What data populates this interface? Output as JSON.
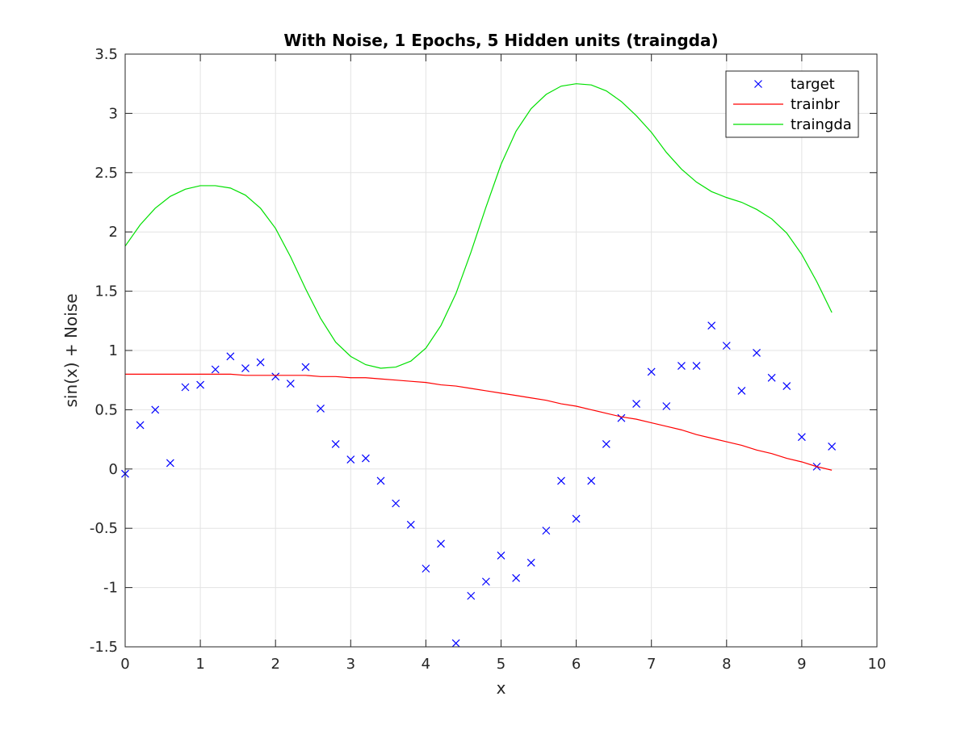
{
  "chart_data": {
    "type": "line",
    "title": "With Noise, 1 Epochs, 5 Hidden units (traingda)",
    "xlabel": "x",
    "ylabel": "sin(x) + Noise",
    "xlim": [
      0,
      10
    ],
    "ylim": [
      -1.5,
      3.5
    ],
    "xticks": [
      0,
      1,
      2,
      3,
      4,
      5,
      6,
      7,
      8,
      9,
      10
    ],
    "yticks": [
      -1.5,
      -1,
      -0.5,
      0,
      0.5,
      1,
      1.5,
      2,
      2.5,
      3,
      3.5
    ],
    "xtick_labels": [
      "0",
      "1",
      "2",
      "3",
      "4",
      "5",
      "6",
      "7",
      "8",
      "9",
      "10"
    ],
    "ytick_labels": [
      "-1.5",
      "-1",
      "-0.5",
      "0",
      "0.5",
      "1",
      "1.5",
      "2",
      "2.5",
      "3",
      "3.5"
    ],
    "grid": true,
    "legend_position": "top-right",
    "x": [
      0,
      0.2,
      0.4,
      0.6,
      0.8,
      1.0,
      1.2,
      1.4,
      1.6,
      1.8,
      2.0,
      2.2,
      2.4,
      2.6,
      2.8,
      3.0,
      3.2,
      3.4,
      3.6,
      3.8,
      4.0,
      4.2,
      4.4,
      4.6,
      4.8,
      5.0,
      5.2,
      5.4,
      5.6,
      5.8,
      6.0,
      6.2,
      6.4,
      6.6,
      6.8,
      7.0,
      7.2,
      7.4,
      7.6,
      7.8,
      8.0,
      8.2,
      8.4,
      8.6,
      8.8,
      9.0,
      9.2,
      9.4
    ],
    "series": [
      {
        "name": "target",
        "style": "marker-x",
        "color": "#0000ff",
        "values": [
          -0.04,
          0.37,
          0.5,
          0.05,
          0.69,
          0.71,
          0.84,
          0.95,
          0.85,
          0.9,
          0.78,
          0.72,
          0.86,
          0.51,
          0.21,
          0.08,
          0.09,
          -0.1,
          -0.29,
          -0.47,
          -0.84,
          -0.63,
          -1.47,
          -1.07,
          -0.95,
          -0.73,
          -0.92,
          -0.79,
          -0.52,
          -0.1,
          -0.42,
          -0.1,
          0.21,
          0.43,
          0.55,
          0.82,
          0.53,
          0.87,
          0.87,
          1.21,
          1.04,
          0.66,
          0.98,
          0.77,
          0.7,
          0.27,
          0.02,
          0.19
        ]
      },
      {
        "name": "trainbr",
        "style": "line",
        "color": "#ff0000",
        "values": [
          0.8,
          0.8,
          0.8,
          0.8,
          0.8,
          0.8,
          0.8,
          0.8,
          0.79,
          0.79,
          0.79,
          0.79,
          0.79,
          0.78,
          0.78,
          0.77,
          0.77,
          0.76,
          0.75,
          0.74,
          0.73,
          0.71,
          0.7,
          0.68,
          0.66,
          0.64,
          0.62,
          0.6,
          0.58,
          0.55,
          0.53,
          0.5,
          0.47,
          0.44,
          0.42,
          0.39,
          0.36,
          0.33,
          0.29,
          0.26,
          0.23,
          0.2,
          0.16,
          0.13,
          0.09,
          0.06,
          0.02,
          -0.01
        ]
      },
      {
        "name": "traingda",
        "style": "line",
        "color": "#00e000",
        "values": [
          1.88,
          2.06,
          2.2,
          2.3,
          2.36,
          2.39,
          2.39,
          2.37,
          2.31,
          2.2,
          2.03,
          1.79,
          1.52,
          1.27,
          1.07,
          0.95,
          0.88,
          0.85,
          0.86,
          0.91,
          1.02,
          1.21,
          1.48,
          1.83,
          2.21,
          2.57,
          2.85,
          3.04,
          3.16,
          3.23,
          3.25,
          3.24,
          3.19,
          3.1,
          2.98,
          2.84,
          2.67,
          2.53,
          2.42,
          2.34,
          2.29,
          2.25,
          2.19,
          2.11,
          1.99,
          1.81,
          1.58,
          1.32
        ]
      }
    ]
  }
}
